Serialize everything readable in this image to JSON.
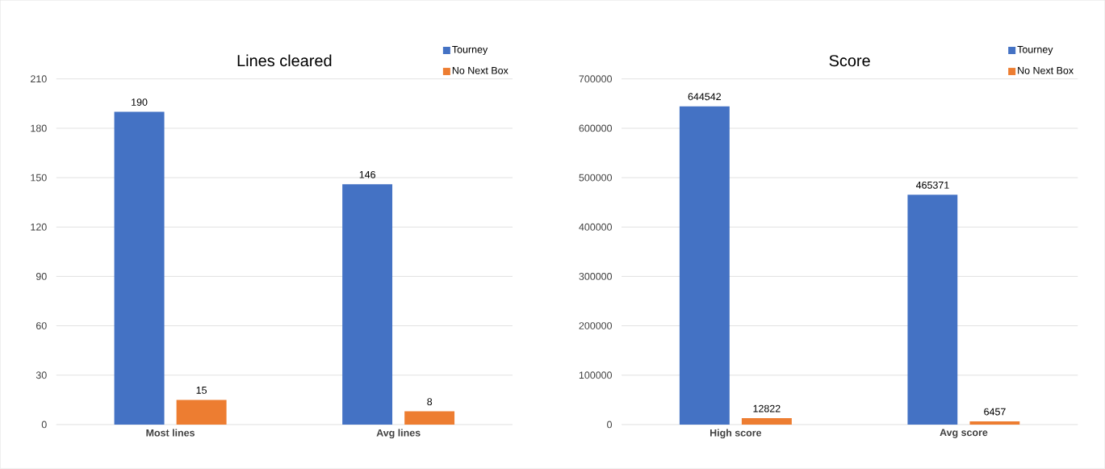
{
  "chart_data": [
    {
      "type": "bar",
      "title": "Lines cleared",
      "categories": [
        "Most lines",
        "Avg lines"
      ],
      "series": [
        {
          "name": "Tourney",
          "color": "#4472c4",
          "values": [
            190,
            146
          ]
        },
        {
          "name": "No Next Box",
          "color": "#ed7d31",
          "values": [
            15,
            8
          ]
        }
      ],
      "ylim": [
        0,
        210
      ],
      "yticks": [
        0,
        30,
        60,
        90,
        120,
        150,
        180,
        210
      ],
      "grid": "y",
      "legend": "top right",
      "data_labels": true
    },
    {
      "type": "bar",
      "title": "Score",
      "categories": [
        "High score",
        "Avg score"
      ],
      "series": [
        {
          "name": "Tourney",
          "color": "#4472c4",
          "values": [
            644542,
            465371
          ]
        },
        {
          "name": "No Next Box",
          "color": "#ed7d31",
          "values": [
            12822,
            6457
          ]
        }
      ],
      "ylim": [
        0,
        700000
      ],
      "yticks": [
        0,
        100000,
        200000,
        300000,
        400000,
        500000,
        600000,
        700000
      ],
      "grid": "y",
      "legend": "top right",
      "data_labels": true
    }
  ]
}
